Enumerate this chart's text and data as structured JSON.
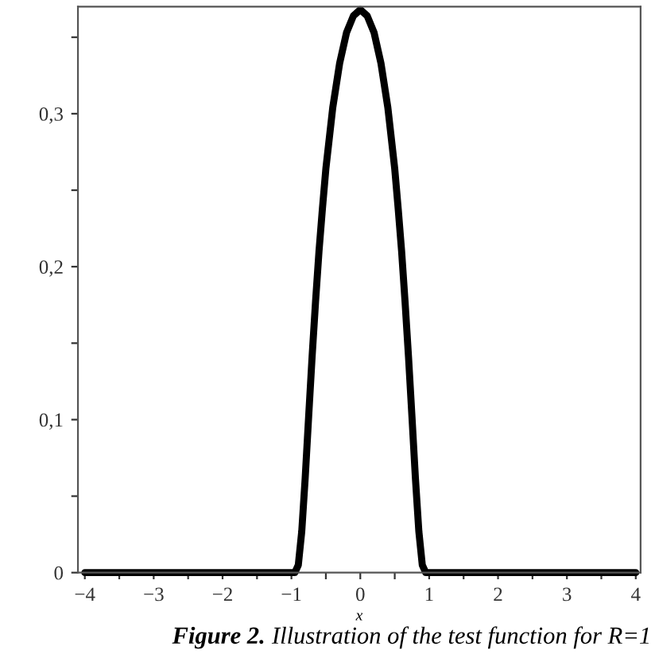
{
  "chart_data": {
    "type": "line",
    "xlabel": "x",
    "x": [
      -4,
      -3,
      -2,
      -1,
      -0.95,
      -0.9,
      -0.85,
      -0.8,
      -0.75,
      -0.7,
      -0.65,
      -0.6,
      -0.55,
      -0.5,
      -0.4,
      -0.3,
      -0.2,
      -0.1,
      0,
      0.1,
      0.2,
      0.3,
      0.4,
      0.5,
      0.55,
      0.6,
      0.65,
      0.7,
      0.75,
      0.8,
      0.85,
      0.9,
      0.95,
      1,
      2,
      3,
      4
    ],
    "series": [
      {
        "color": "#000000",
        "values": [
          0,
          0,
          0,
          0,
          0,
          0.005,
          0.027,
          0.062,
          0.102,
          0.141,
          0.177,
          0.21,
          0.238,
          0.264,
          0.304,
          0.333,
          0.353,
          0.364,
          0.368,
          0.364,
          0.353,
          0.333,
          0.304,
          0.264,
          0.238,
          0.21,
          0.177,
          0.141,
          0.102,
          0.062,
          0.027,
          0.005,
          0,
          0,
          0,
          0,
          0
        ]
      }
    ],
    "xlim": [
      -4.1,
      4.07
    ],
    "ylim": [
      0,
      0.37
    ],
    "xticks": [
      {
        "value": -4,
        "label": "−4"
      },
      {
        "value": -3.5,
        "label": null
      },
      {
        "value": -3,
        "label": "−3"
      },
      {
        "value": -2.5,
        "label": null
      },
      {
        "value": -2,
        "label": "−2"
      },
      {
        "value": -1.5,
        "label": null
      },
      {
        "value": -1,
        "label": "−1"
      },
      {
        "value": -0.5,
        "label": null
      },
      0,
      {
        "value": 0.5,
        "label": null
      },
      1,
      {
        "value": 1.5,
        "label": null
      },
      2,
      {
        "value": 2.5,
        "label": null
      },
      3,
      {
        "value": 3.5,
        "label": null
      },
      4
    ],
    "yticks": [
      0,
      {
        "value": 0.05,
        "label": null
      },
      {
        "value": 0.1,
        "label": "0,1"
      },
      {
        "value": 0.15,
        "label": null
      },
      {
        "value": 0.2,
        "label": "0,2"
      },
      {
        "value": 0.25,
        "label": null
      },
      {
        "value": 0.3,
        "label": "0,3"
      },
      {
        "value": 0.35,
        "label": null
      }
    ],
    "grid": false,
    "marker": "none",
    "line_style": "solid",
    "annotations": [
      "Figure 2.",
      "Illustration of the test function for R=1"
    ]
  }
}
